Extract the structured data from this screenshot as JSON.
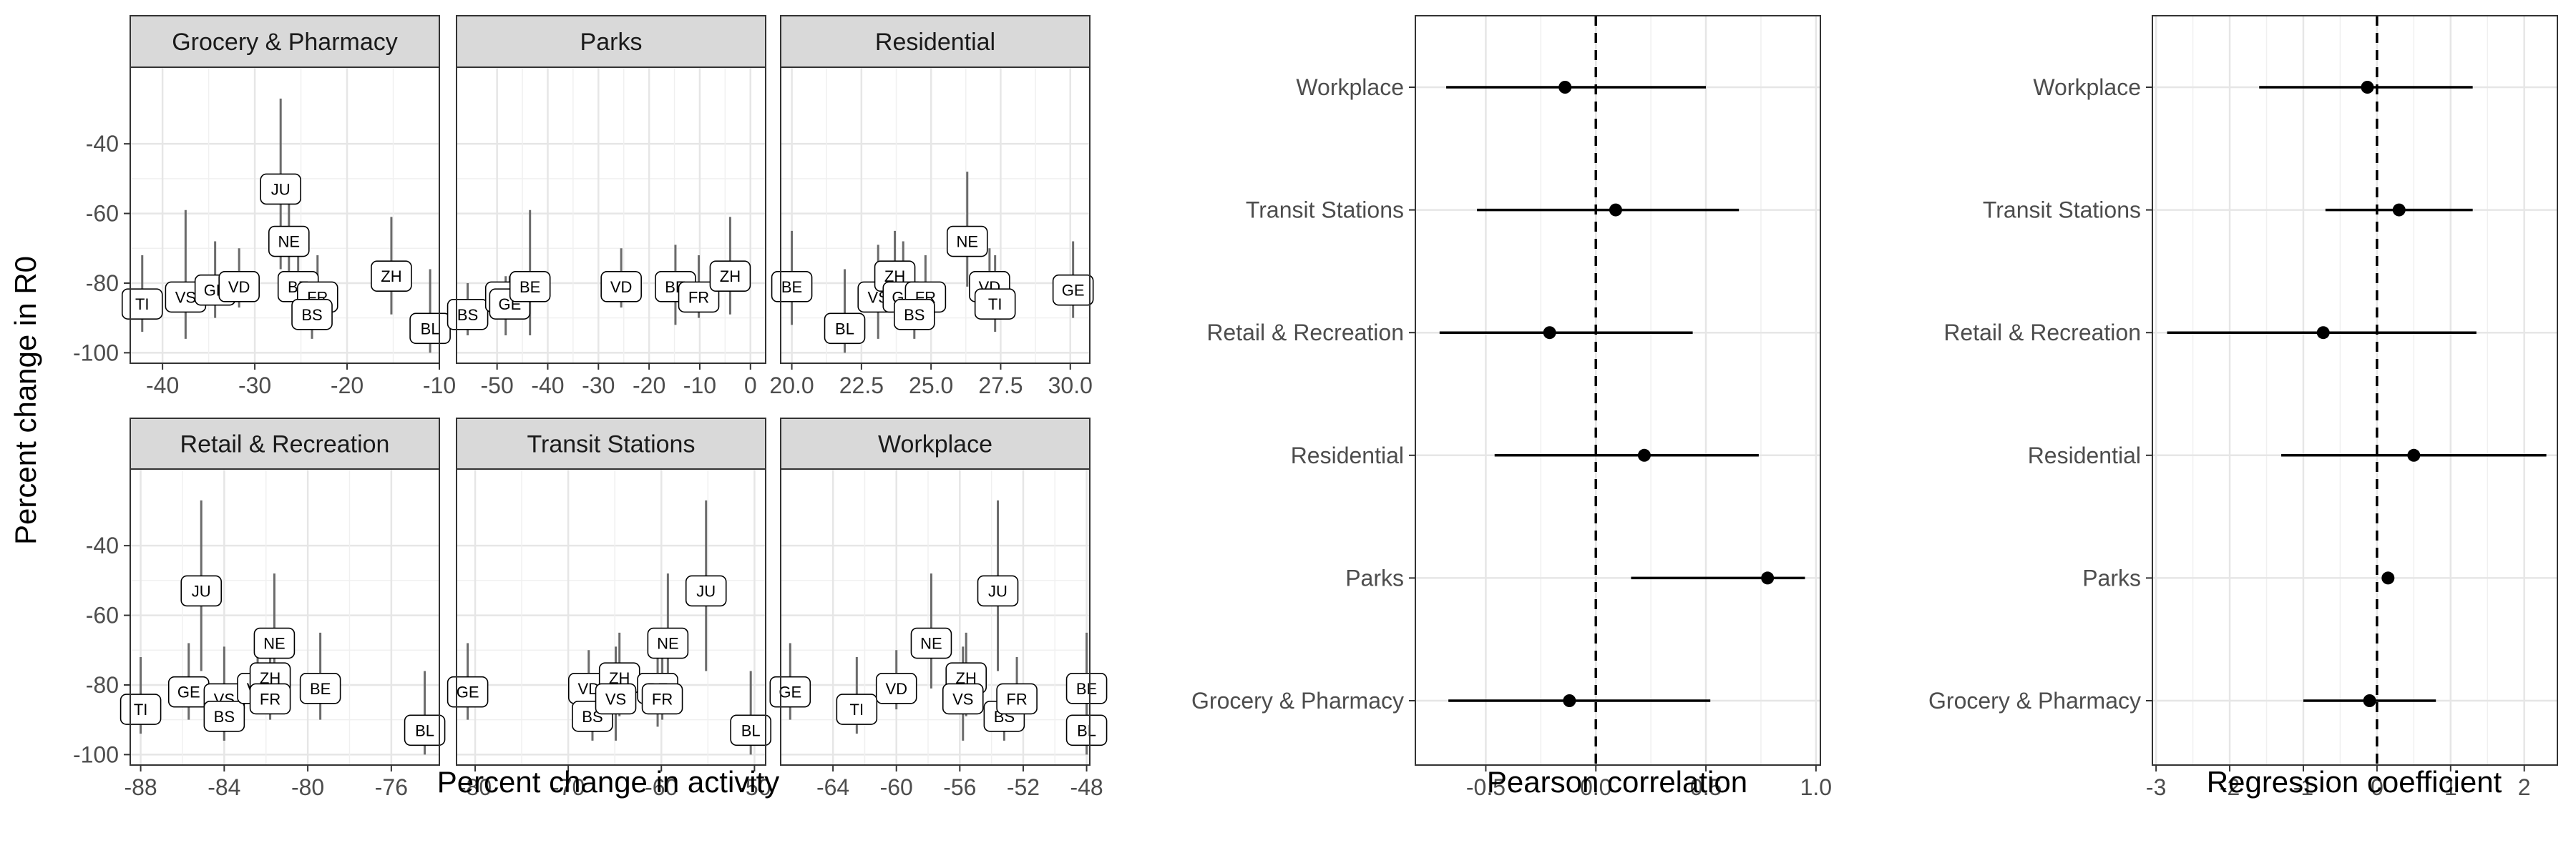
{
  "chart_data": [
    {
      "type": "scatter",
      "subtype": "faceted scatter with vertical error bars and text labels",
      "xlabel": "Percent change in activity",
      "ylabel": "Percent change in R0",
      "ylim": [
        -103,
        -18
      ],
      "yticks": [
        -40,
        -60,
        -80,
        -100
      ],
      "grid": true,
      "panels": [
        {
          "title": "Grocery & Pharmacy",
          "xlim": [
            -43.5,
            -10
          ],
          "xticks": [
            -40,
            -30,
            -20,
            -10
          ],
          "points": [
            {
              "label": "TI",
              "x": -42.2,
              "y": -86,
              "lo": -94,
              "hi": -72
            },
            {
              "label": "VS",
              "x": -37.5,
              "y": -84,
              "lo": -96,
              "hi": -59
            },
            {
              "label": "GE",
              "x": -34.3,
              "y": -82,
              "lo": -90,
              "hi": -68
            },
            {
              "label": "VD",
              "x": -31.7,
              "y": -81,
              "lo": -87,
              "hi": -70
            },
            {
              "label": "JU",
              "x": -27.2,
              "y": -53,
              "lo": -76,
              "hi": -27
            },
            {
              "label": "NE",
              "x": -26.3,
              "y": -68,
              "lo": -81,
              "hi": -56
            },
            {
              "label": "BE",
              "x": -25.3,
              "y": -81,
              "lo": -92,
              "hi": -69
            },
            {
              "label": "FR",
              "x": -23.2,
              "y": -84,
              "lo": -90,
              "hi": -72
            },
            {
              "label": "BS",
              "x": -23.8,
              "y": -89,
              "lo": -96,
              "hi": -80
            },
            {
              "label": "ZH",
              "x": -15.2,
              "y": -78,
              "lo": -89,
              "hi": -61
            },
            {
              "label": "BL",
              "x": -11,
              "y": -93,
              "lo": -100,
              "hi": -76
            }
          ]
        },
        {
          "title": "Parks",
          "xlim": [
            -58,
            3
          ],
          "xticks": [
            -50,
            -40,
            -30,
            -20,
            -10,
            0
          ],
          "points": [
            {
              "label": "BS",
              "x": -55.8,
              "y": -89,
              "lo": -95,
              "hi": -80
            },
            {
              "label": "VS",
              "x": -48.3,
              "y": -84,
              "lo": -95,
              "hi": -78
            },
            {
              "label": "GE",
              "x": -47.5,
              "y": -86,
              "lo": -90,
              "hi": -78
            },
            {
              "label": "BE",
              "x": -43.5,
              "y": -81,
              "lo": -95,
              "hi": -59
            },
            {
              "label": "VD",
              "x": -25.5,
              "y": -81,
              "lo": -87,
              "hi": -70
            },
            {
              "label": "BE",
              "x": -14.8,
              "y": -81,
              "lo": -92,
              "hi": -69
            },
            {
              "label": "FR",
              "x": -10.2,
              "y": -84,
              "lo": -90,
              "hi": -72
            },
            {
              "label": "ZH",
              "x": -4,
              "y": -78,
              "lo": -89,
              "hi": -61
            }
          ]
        },
        {
          "title": "Residential",
          "xlim": [
            19.6,
            30.7
          ],
          "xticks": [
            20.0,
            22.5,
            25.0,
            27.5,
            30.0
          ],
          "tick_labels": [
            "20.0",
            "22.5",
            "25.0",
            "27.5",
            "30.0"
          ],
          "points": [
            {
              "label": "BE",
              "x": 20,
              "y": -81,
              "lo": -92,
              "hi": -65
            },
            {
              "label": "BL",
              "x": 21.9,
              "y": -93,
              "lo": -100,
              "hi": -76
            },
            {
              "label": "VS",
              "x": 23.1,
              "y": -84,
              "lo": -96,
              "hi": -69
            },
            {
              "label": "ZH",
              "x": 23.7,
              "y": -78,
              "lo": -89,
              "hi": -65
            },
            {
              "label": "GE",
              "x": 24,
              "y": -84,
              "lo": -90,
              "hi": -68
            },
            {
              "label": "FR",
              "x": 24.8,
              "y": -84,
              "lo": -90,
              "hi": -72
            },
            {
              "label": "BS",
              "x": 24.4,
              "y": -89,
              "lo": -96,
              "hi": -80
            },
            {
              "label": "NE",
              "x": 26.3,
              "y": -68,
              "lo": -81,
              "hi": -48
            },
            {
              "label": "VD",
              "x": 27.1,
              "y": -81,
              "lo": -87,
              "hi": -70
            },
            {
              "label": "TI",
              "x": 27.3,
              "y": -86,
              "lo": -94,
              "hi": -72
            },
            {
              "label": "GE",
              "x": 30.1,
              "y": -82,
              "lo": -90,
              "hi": -68
            }
          ]
        },
        {
          "title": "Retail & Recreation",
          "xlim": [
            -88.5,
            -73.7
          ],
          "xticks": [
            -88,
            -84,
            -80,
            -76
          ],
          "points": [
            {
              "label": "TI",
              "x": -88,
              "y": -87,
              "lo": -94,
              "hi": -72
            },
            {
              "label": "GE",
              "x": -85.7,
              "y": -82,
              "lo": -90,
              "hi": -68
            },
            {
              "label": "JU",
              "x": -85.1,
              "y": -53,
              "lo": -76,
              "hi": -27
            },
            {
              "label": "VS",
              "x": -84,
              "y": -84,
              "lo": -96,
              "hi": -69
            },
            {
              "label": "BS",
              "x": -84,
              "y": -89,
              "lo": -96,
              "hi": -80
            },
            {
              "label": "VD",
              "x": -82.4,
              "y": -81,
              "lo": -87,
              "hi": -70
            },
            {
              "label": "ZH",
              "x": -81.8,
              "y": -78,
              "lo": -89,
              "hi": -65
            },
            {
              "label": "NE",
              "x": -81.6,
              "y": -68,
              "lo": -81,
              "hi": -48
            },
            {
              "label": "FR",
              "x": -81.8,
              "y": -84,
              "lo": -90,
              "hi": -72
            },
            {
              "label": "BE",
              "x": -79.4,
              "y": -81,
              "lo": -90,
              "hi": -65
            },
            {
              "label": "BL",
              "x": -74.4,
              "y": -93,
              "lo": -100,
              "hi": -76
            }
          ]
        },
        {
          "title": "Transit Stations",
          "xlim": [
            -82,
            -48.8
          ],
          "xticks": [
            -80,
            -70,
            -60,
            -50
          ],
          "points": [
            {
              "label": "GE",
              "x": -80.8,
              "y": -82,
              "lo": -90,
              "hi": -68
            },
            {
              "label": "VD",
              "x": -67.8,
              "y": -81,
              "lo": -87,
              "hi": -70
            },
            {
              "label": "BS",
              "x": -67.4,
              "y": -89,
              "lo": -96,
              "hi": -80
            },
            {
              "label": "ZH",
              "x": -64.5,
              "y": -78,
              "lo": -89,
              "hi": -65
            },
            {
              "label": "VS",
              "x": -64.9,
              "y": -84,
              "lo": -96,
              "hi": -69
            },
            {
              "label": "BE",
              "x": -60.4,
              "y": -81,
              "lo": -92,
              "hi": -69
            },
            {
              "label": "FR",
              "x": -59.9,
              "y": -84,
              "lo": -90,
              "hi": -72
            },
            {
              "label": "NE",
              "x": -59.3,
              "y": -68,
              "lo": -81,
              "hi": -48
            },
            {
              "label": "JU",
              "x": -55.2,
              "y": -53,
              "lo": -76,
              "hi": -27
            },
            {
              "label": "BL",
              "x": -50.4,
              "y": -93,
              "lo": -100,
              "hi": -76
            }
          ]
        },
        {
          "title": "Workplace",
          "xlim": [
            -67.3,
            -47.8
          ],
          "xticks": [
            -64,
            -60,
            -56,
            -52,
            -48
          ],
          "points": [
            {
              "label": "GE",
              "x": -66.7,
              "y": -82,
              "lo": -90,
              "hi": -68
            },
            {
              "label": "TI",
              "x": -62.5,
              "y": -87,
              "lo": -94,
              "hi": -72
            },
            {
              "label": "VD",
              "x": -60,
              "y": -81,
              "lo": -87,
              "hi": -70
            },
            {
              "label": "NE",
              "x": -57.8,
              "y": -68,
              "lo": -81,
              "hi": -48
            },
            {
              "label": "ZH",
              "x": -55.6,
              "y": -78,
              "lo": -89,
              "hi": -65
            },
            {
              "label": "VS",
              "x": -55.8,
              "y": -84,
              "lo": -96,
              "hi": -69
            },
            {
              "label": "JU",
              "x": -53.6,
              "y": -53,
              "lo": -76,
              "hi": -27
            },
            {
              "label": "BS",
              "x": -53.2,
              "y": -89,
              "lo": -96,
              "hi": -80
            },
            {
              "label": "FR",
              "x": -52.4,
              "y": -84,
              "lo": -90,
              "hi": -72
            },
            {
              "label": "BE",
              "x": -48,
              "y": -81,
              "lo": -92,
              "hi": -65
            },
            {
              "label": "BL",
              "x": -48,
              "y": -93,
              "lo": -100,
              "hi": -76
            }
          ]
        }
      ]
    },
    {
      "type": "scatter",
      "subtype": "forest plot",
      "xlabel": "Pearson correlation",
      "xlim": [
        -0.82,
        1.02
      ],
      "xticks": [
        -0.5,
        0.0,
        0.5,
        1.0
      ],
      "tick_labels": [
        "-0.5",
        "0.0",
        "0.5",
        "1.0"
      ],
      "reference_line": 0,
      "grid": true,
      "categories": [
        "Workplace",
        "Transit Stations",
        "Retail & Recreation",
        "Residential",
        "Parks",
        "Grocery & Pharmacy"
      ],
      "estimates": [
        -0.14,
        0.09,
        -0.21,
        0.22,
        0.78,
        -0.12
      ],
      "lower": [
        -0.68,
        -0.54,
        -0.71,
        -0.46,
        0.16,
        -0.67
      ],
      "upper": [
        0.5,
        0.65,
        0.44,
        0.74,
        0.95,
        0.52
      ]
    },
    {
      "type": "scatter",
      "subtype": "forest plot",
      "xlabel": "Regression coefficient",
      "xlim": [
        -3.05,
        2.45
      ],
      "xticks": [
        -3,
        -2,
        -1,
        0,
        1,
        2
      ],
      "reference_line": 0,
      "grid": true,
      "categories": [
        "Workplace",
        "Transit Stations",
        "Retail & Recreation",
        "Residential",
        "Parks",
        "Grocery & Pharmacy"
      ],
      "estimates": [
        -0.13,
        0.3,
        -0.73,
        0.5,
        0.15,
        -0.1
      ],
      "lower": [
        -1.6,
        -0.7,
        -2.85,
        -1.3,
        0.08,
        -1.0
      ],
      "upper": [
        1.3,
        1.3,
        1.35,
        2.3,
        0.22,
        0.8
      ]
    }
  ]
}
